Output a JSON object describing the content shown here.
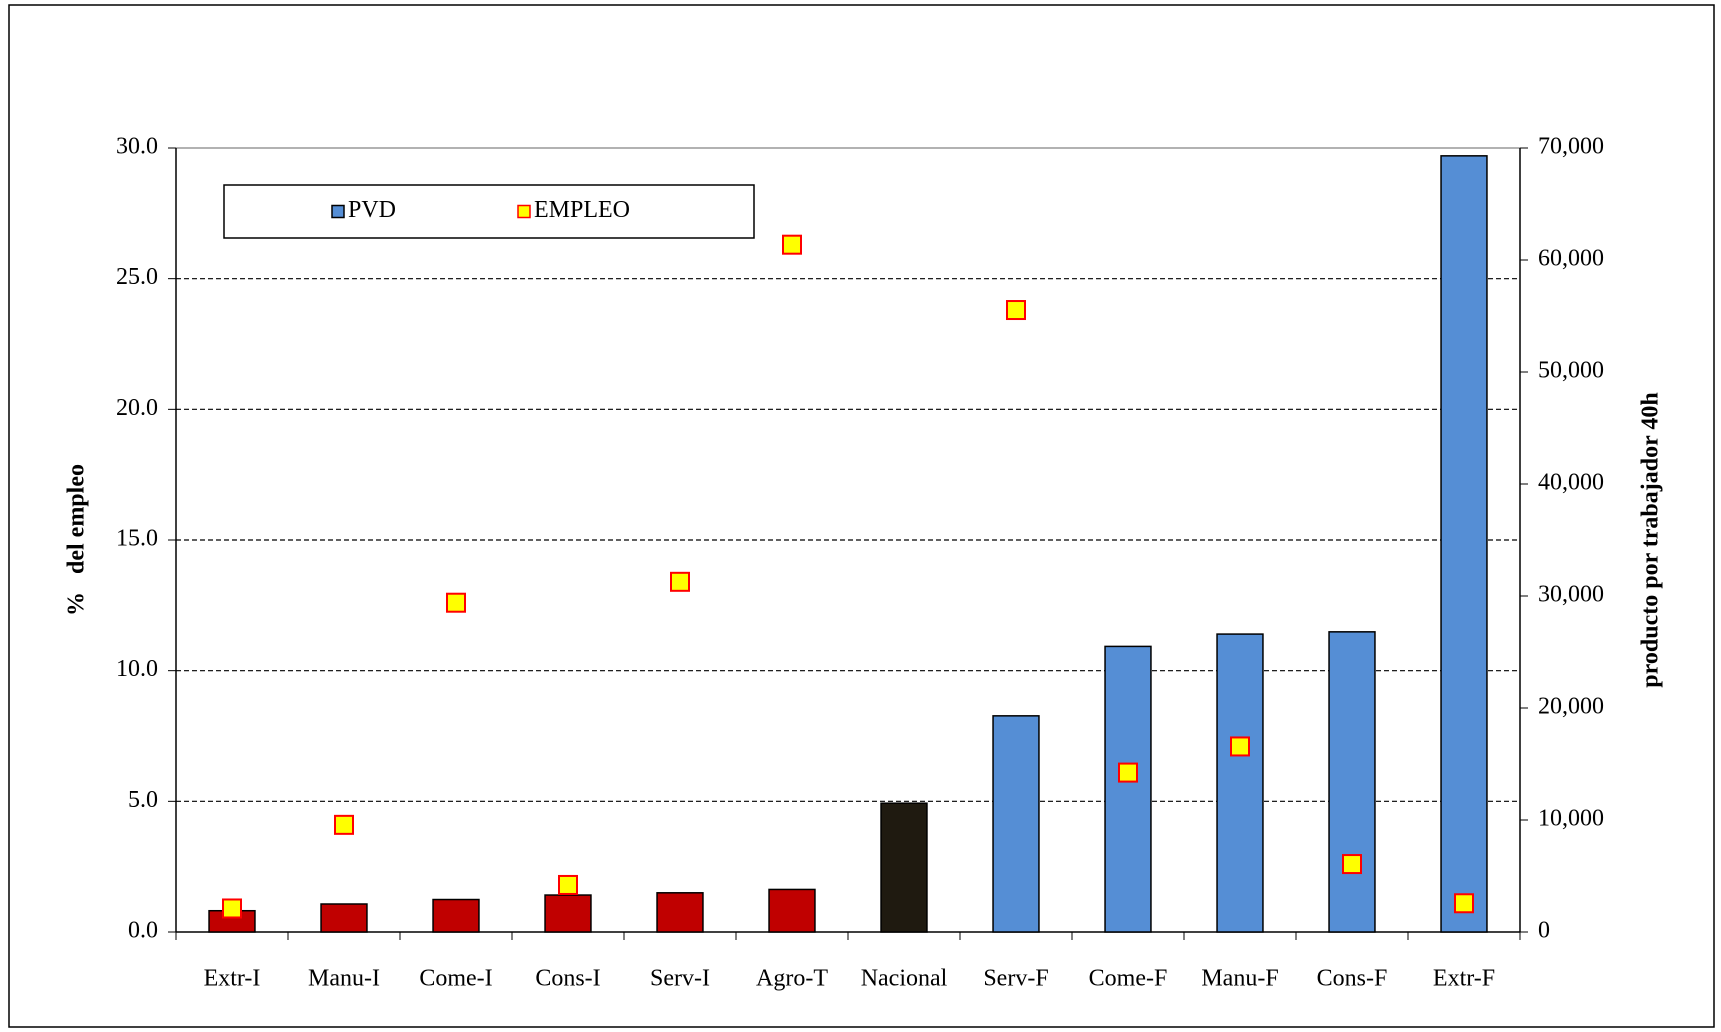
{
  "chart_data": {
    "type": "bar",
    "categories": [
      "Extr-I",
      "Manu-I",
      "Come-I",
      "Cons-I",
      "Serv-I",
      "Agro-T",
      "Nacional",
      "Serv-F",
      "Come-F",
      "Manu-F",
      "Cons-F",
      "Extr-F"
    ],
    "series": [
      {
        "name": "PVD",
        "type": "bar",
        "axis": "y2",
        "color": "#558ed5",
        "colors": [
          "#c00000",
          "#c00000",
          "#c00000",
          "#c00000",
          "#c00000",
          "#c00000",
          "#1f1a10",
          "#558ed5",
          "#558ed5",
          "#558ed5",
          "#558ed5",
          "#558ed5"
        ],
        "values": [
          1900,
          2500,
          2900,
          3300,
          3500,
          3800,
          11500,
          19300,
          25500,
          26600,
          26800,
          69300
        ]
      },
      {
        "name": "EMPLEO",
        "type": "scatter",
        "color": "#ffff00",
        "edge_color": "#ff0000",
        "values": [
          0.9,
          4.1,
          12.6,
          1.8,
          13.4,
          26.3,
          null,
          23.8,
          6.1,
          7.1,
          2.6,
          1.1
        ]
      }
    ],
    "ylabel": "%   del empleo",
    "y2label": "producto por trabajador 40h",
    "ylim": [
      0,
      30
    ],
    "yticks": [
      {
        "value": 0,
        "label": "0.0"
      },
      {
        "value": 5,
        "label": "5.0"
      },
      {
        "value": 10,
        "label": "10.0"
      },
      {
        "value": 15,
        "label": "15.0"
      },
      {
        "value": 20,
        "label": "20.0"
      },
      {
        "value": 25,
        "label": "25.0"
      },
      {
        "value": 30,
        "label": "30.0"
      }
    ],
    "y2lim": [
      0,
      70000
    ],
    "y2ticks": [
      0,
      {
        "value": 10000,
        "label": "10,000"
      },
      {
        "value": 20000,
        "label": "20,000"
      },
      {
        "value": 30000,
        "label": "30,000"
      },
      {
        "value": 40000,
        "label": "40,000"
      },
      {
        "value": 50000,
        "label": "50,000"
      },
      {
        "value": 60000,
        "label": "60,000"
      },
      {
        "value": 70000,
        "label": "70,000"
      }
    ],
    "grid": true,
    "legend": "upper left"
  }
}
